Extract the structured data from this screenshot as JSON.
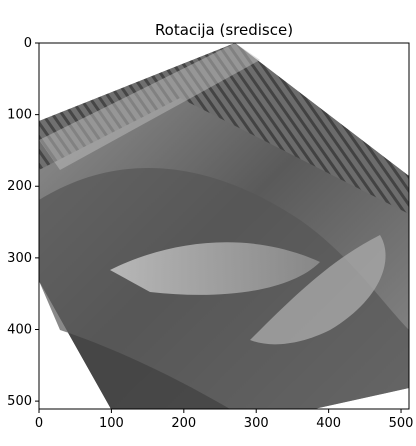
{
  "figure": {
    "title": "Rotacija (sredisce)",
    "x_ticks": [
      "0",
      "100",
      "200",
      "300",
      "400",
      "500"
    ],
    "y_ticks": [
      "0",
      "100",
      "200",
      "300",
      "400",
      "500"
    ],
    "image_description_colors": {
      "background": "#ffffff",
      "image_dark": "#2a2a2a",
      "image_mid": "#7a7a7a",
      "image_light": "#bdbdbd"
    }
  },
  "chart_data": {
    "type": "heatmap",
    "title": "Rotacija (sredisce)",
    "xlabel": "",
    "ylabel": "",
    "xlim": [
      0,
      511
    ],
    "ylim": [
      511,
      0
    ],
    "x_ticks": [
      0,
      100,
      200,
      300,
      400,
      500
    ],
    "y_ticks": [
      0,
      100,
      200,
      300,
      400,
      500
    ],
    "grid": false,
    "legend": "none",
    "colormap": "gray"
  }
}
